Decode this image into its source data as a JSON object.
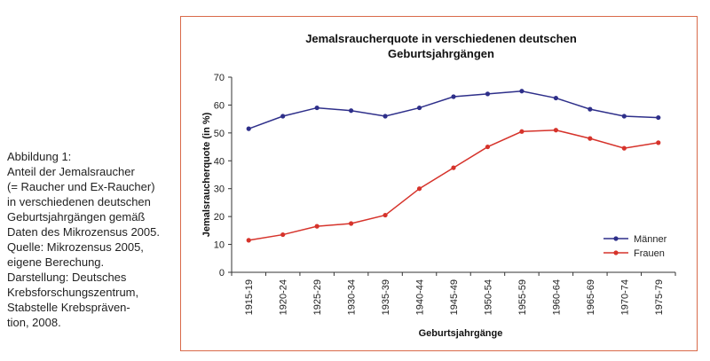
{
  "caption": {
    "lines": [
      "Abbildung 1:",
      "Anteil der Jemalsraucher",
      "(= Raucher und Ex-Raucher)",
      "in verschiedenen deutschen",
      "Geburtsjahrgängen gemäß",
      "Daten des Mikrozensus 2005.",
      "Quelle: Mikrozensus 2005,",
      "eigene Berechung.",
      "Darstellung: Deutsches",
      "Krebsforschungszentrum,",
      "Stabstelle Krebspräven-",
      "tion, 2008."
    ]
  },
  "colors": {
    "frame": "#d96a4a",
    "maenner": "#2e2f8a",
    "frauen": "#d6332b",
    "axis": "#333333"
  },
  "chart_data": {
    "type": "line",
    "title": "Jemalsraucherquote in verschiedenen deutschen",
    "title_line2": "Geburtsjahrgängen",
    "xlabel": "Geburtsjahrgänge",
    "ylabel": "Jemalsraucherquote (in %)",
    "ylim": [
      0,
      70
    ],
    "yticks": [
      0,
      10,
      20,
      30,
      40,
      50,
      60,
      70
    ],
    "grid": false,
    "legend_position": "right",
    "categories": [
      "1915-19",
      "1920-24",
      "1925-29",
      "1930-34",
      "1935-39",
      "1940-44",
      "1945-49",
      "1950-54",
      "1955-59",
      "1960-64",
      "1965-69",
      "1970-74",
      "1975-79"
    ],
    "series": [
      {
        "name": "Männer",
        "values": [
          51.5,
          56,
          59,
          58,
          56,
          59,
          63,
          64,
          65,
          62.5,
          58.5,
          56,
          55.5
        ]
      },
      {
        "name": "Frauen",
        "values": [
          11.5,
          13.5,
          16.5,
          17.5,
          20.5,
          30,
          37.5,
          45,
          50.5,
          51,
          48,
          44.5,
          46.5
        ]
      }
    ]
  }
}
